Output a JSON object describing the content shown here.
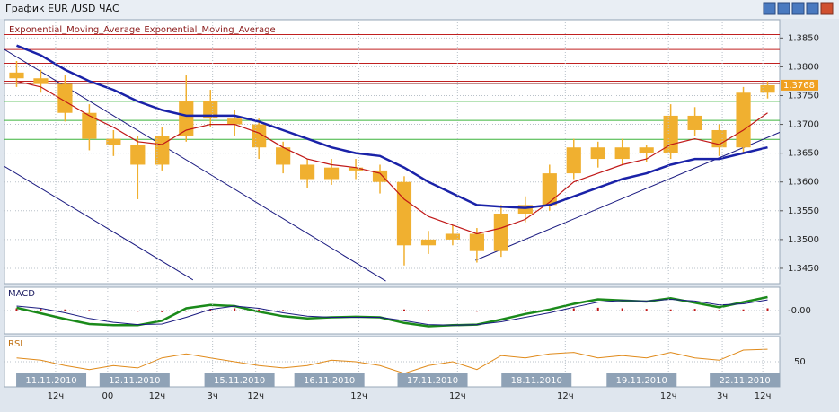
{
  "window_title": "График EUR /USD ЧАС",
  "chart_data": [
    {
      "type": "candlestick",
      "name": "EUR/USD",
      "xlim": [
        -0.5,
        31.5
      ],
      "xticks": [
        {
          "value": 1.61,
          "label": "12ч"
        },
        {
          "value": 3.76,
          "label": "00"
        },
        {
          "value": 5.8,
          "label": "12ч"
        },
        {
          "value": 8.09,
          "label": "3ч"
        },
        {
          "value": 9.87,
          "label": "12ч"
        },
        {
          "value": 14.13,
          "label": "12ч"
        },
        {
          "value": 18.2,
          "label": "12ч"
        },
        {
          "value": 22.65,
          "label": "12ч"
        },
        {
          "value": 26.91,
          "label": "12ч"
        },
        {
          "value": 29.13,
          "label": "3ч"
        },
        {
          "value": 30.8,
          "label": "12ч"
        }
      ],
      "date_ticks": [
        {
          "value": 1.43,
          "label": "11.11.2010"
        },
        {
          "value": 4.87,
          "label": "12.11.2010"
        },
        {
          "value": 9.2,
          "label": "15.11.2010"
        },
        {
          "value": 12.91,
          "label": "16.11.2010"
        },
        {
          "value": 17.17,
          "label": "17.11.2010"
        },
        {
          "value": 21.46,
          "label": "18.11.2010"
        },
        {
          "value": 25.8,
          "label": "19.11.2010"
        },
        {
          "value": 30.06,
          "label": "22.11.2010"
        }
      ],
      "ylim": [
        1.3425,
        1.3877
      ],
      "yticks": [
        {
          "value": 1.385,
          "label": "1.3850"
        },
        {
          "value": 1.38,
          "label": "1.3800"
        },
        {
          "value": 1.375,
          "label": "1.3750"
        },
        {
          "value": 1.37,
          "label": "1.3700"
        },
        {
          "value": 1.365,
          "label": "1.3650"
        },
        {
          "value": 1.36,
          "label": "1.3600"
        },
        {
          "value": 1.355,
          "label": "1.3550"
        },
        {
          "value": 1.35,
          "label": "1.3500"
        },
        {
          "value": 1.345,
          "label": "1.3450"
        }
      ],
      "grid": true,
      "color": "#f0b030",
      "open": [
        1.379,
        1.378,
        1.377,
        1.372,
        1.3675,
        1.3665,
        1.363,
        1.368,
        1.374,
        1.371,
        1.37,
        1.366,
        1.363,
        1.3605,
        1.3625,
        1.362,
        1.36,
        1.349,
        1.35,
        1.351,
        1.348,
        1.3545,
        1.356,
        1.3615,
        1.366,
        1.364,
        1.366,
        1.365,
        1.3715,
        1.369,
        1.366,
        1.3755
      ],
      "high": [
        1.381,
        1.3795,
        1.3785,
        1.3735,
        1.369,
        1.368,
        1.3695,
        1.3785,
        1.376,
        1.3725,
        1.371,
        1.367,
        1.364,
        1.364,
        1.364,
        1.363,
        1.361,
        1.3515,
        1.3525,
        1.352,
        1.356,
        1.3575,
        1.363,
        1.3675,
        1.367,
        1.3675,
        1.3665,
        1.3735,
        1.373,
        1.37,
        1.3765,
        1.3775
      ],
      "low": [
        1.3765,
        1.3755,
        1.3705,
        1.3655,
        1.3645,
        1.357,
        1.362,
        1.367,
        1.3695,
        1.368,
        1.364,
        1.3615,
        1.359,
        1.3595,
        1.3605,
        1.358,
        1.3455,
        1.3475,
        1.349,
        1.346,
        1.347,
        1.353,
        1.355,
        1.3605,
        1.3625,
        1.363,
        1.3635,
        1.364,
        1.368,
        1.3645,
        1.365,
        1.3745
      ],
      "close": [
        1.378,
        1.377,
        1.372,
        1.3675,
        1.3665,
        1.363,
        1.368,
        1.374,
        1.371,
        1.37,
        1.366,
        1.363,
        1.3605,
        1.3625,
        1.362,
        1.36,
        1.349,
        1.35,
        1.351,
        1.348,
        1.3545,
        1.356,
        1.3615,
        1.366,
        1.364,
        1.366,
        1.365,
        1.3715,
        1.369,
        1.366,
        1.3755,
        1.3768
      ],
      "price_tag": {
        "value": 1.3768,
        "label": "1.3768"
      },
      "series": [
        {
          "name": "Exponential_Moving_Average",
          "color": "#c01818",
          "values": [
            1.3775,
            1.3765,
            1.374,
            1.3715,
            1.3695,
            1.367,
            1.3665,
            1.369,
            1.37,
            1.37,
            1.3685,
            1.366,
            1.364,
            1.363,
            1.3625,
            1.3615,
            1.357,
            1.354,
            1.3525,
            1.351,
            1.352,
            1.3535,
            1.3565,
            1.36,
            1.3615,
            1.363,
            1.364,
            1.3665,
            1.3675,
            1.3665,
            1.369,
            1.372
          ]
        },
        {
          "name": "Exponential_Moving_Average",
          "color": "#1a22a8",
          "values": [
            1.3837,
            1.382,
            1.3795,
            1.3775,
            1.376,
            1.374,
            1.3725,
            1.3715,
            1.3715,
            1.3715,
            1.3705,
            1.369,
            1.3675,
            1.366,
            1.365,
            1.3645,
            1.3625,
            1.36,
            1.358,
            1.356,
            1.3557,
            1.3555,
            1.356,
            1.3575,
            1.359,
            1.3605,
            1.3615,
            1.363,
            1.364,
            1.364,
            1.365,
            1.366
          ]
        }
      ],
      "levels": [
        {
          "value": 1.3856,
          "color": "#c02020"
        },
        {
          "value": 1.383,
          "color": "#c02020"
        },
        {
          "value": 1.3806,
          "color": "#c02020"
        },
        {
          "value": 1.3775,
          "color": "#c02020"
        },
        {
          "value": 1.3771,
          "color": "#8b1a1a"
        },
        {
          "value": 1.374,
          "color": "#3cb43c"
        },
        {
          "value": 1.3707,
          "color": "#3cb43c"
        },
        {
          "value": 1.3674,
          "color": "#3cb43c"
        }
      ],
      "trendlines": [
        {
          "x": [
            -0.5,
            15.24
          ],
          "y": [
            1.383,
            1.3428
          ],
          "color": "#1a1a80"
        },
        {
          "x": [
            -0.5,
            7.28
          ],
          "y": [
            1.3627,
            1.343
          ],
          "color": "#1a1a80"
        },
        {
          "x": [
            18.94,
            31.72
          ],
          "y": [
            1.3464,
            1.369
          ],
          "color": "#1a1a80"
        }
      ]
    },
    {
      "type": "macd",
      "title": "MACD",
      "ylim": [
        -0.004,
        0.004
      ],
      "yticks": [
        {
          "value": 0,
          "label": "-0.00"
        }
      ],
      "grid": true,
      "series": [
        {
          "color": "#1a8a1a",
          "values": [
            0.0005,
            -0.0005,
            -0.0015,
            -0.0024,
            -0.0026,
            -0.0026,
            -0.0018,
            0.0004,
            0.001,
            0.0008,
            -0.0002,
            -0.001,
            -0.0014,
            -0.0012,
            -0.0011,
            -0.0012,
            -0.0022,
            -0.0028,
            -0.0026,
            -0.0025,
            -0.0016,
            -0.0006,
            0.0002,
            0.0012,
            0.002,
            0.0018,
            0.0016,
            0.0022,
            0.0014,
            0.0006,
            0.0015,
            0.0024
          ]
        },
        {
          "color": "#1a1a80",
          "values": [
            0.0008,
            0.0004,
            -0.0004,
            -0.0014,
            -0.0021,
            -0.0025,
            -0.0024,
            -0.0012,
            0.0002,
            0.0008,
            0.0004,
            -0.0004,
            -0.001,
            -0.0012,
            -0.0012,
            -0.0012,
            -0.0018,
            -0.0025,
            -0.0026,
            -0.0025,
            -0.002,
            -0.0012,
            -0.0004,
            0.0006,
            0.0015,
            0.0018,
            0.0017,
            0.002,
            0.0017,
            0.001,
            0.0012,
            0.0019
          ]
        }
      ],
      "histogram": {
        "color": "#c01818",
        "values": [
          0.0004,
          0.0003,
          0.0002,
          0.0001,
          -0.0001,
          -0.0002,
          -0.0003,
          -0.0002,
          0.0003,
          0.0004,
          0.0002,
          0.0001,
          -0.0001,
          -0.0002,
          -0.0001,
          0,
          0.0002,
          0.0001,
          -0.0001,
          -0.0002,
          -0.0001,
          0.0001,
          0.0002,
          0.0004,
          0.0005,
          0.0004,
          0.0003,
          0.0002,
          0.0003,
          0.0001,
          0.0002,
          0.0004
        ]
      }
    },
    {
      "type": "rsi",
      "title": "RSI",
      "ylim": [
        20,
        80
      ],
      "yticks": [
        50
      ],
      "grid": true,
      "series": [
        {
          "color": "#e08a1a",
          "values": [
            55,
            52,
            45,
            40,
            45,
            42,
            55,
            60,
            55,
            50,
            45,
            42,
            45,
            52,
            50,
            45,
            35,
            45,
            50,
            40,
            58,
            55,
            60,
            62,
            55,
            58,
            55,
            62,
            55,
            52,
            65,
            66
          ]
        }
      ]
    }
  ]
}
